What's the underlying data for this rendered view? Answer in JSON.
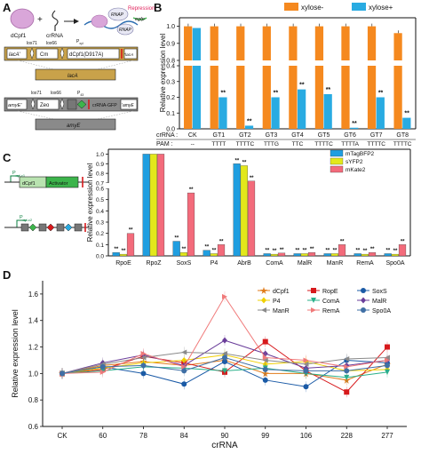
{
  "panels": {
    "a": "A",
    "b": "B",
    "c": "C",
    "d": "D"
  },
  "diagram_a": {
    "dcpf1": "dCpf1",
    "crrna": "crRNA",
    "rnap": "RNAP",
    "repression": "Repression",
    "egfp": "egfp",
    "lox71": "lox71",
    "lox66": "lox66",
    "lox71b": "lox71",
    "lox66b": "lox66",
    "lacA_left": "lacA'",
    "cm": "Cm",
    "pxyl": "P",
    "pxyl_sub": "xyl",
    "dcpf1_mut": "dCpf1(D917A)",
    "lacA_right": "'lacA",
    "lacA": "lacA",
    "amyE_left": "amyE'",
    "zeo": "Zeo",
    "p43": "P",
    "p43_sub": "43",
    "crrna_gfp": "crRNA-GFP",
    "amyE_right": "'amyE",
    "amyE": "amyE"
  },
  "diagram_c": {
    "p1": "P",
    "p1_sub": "xyl-c1",
    "dcpf1": "dCpf1",
    "activator": "Activator",
    "p2": "P",
    "p2_sub": "xyl-c2"
  },
  "chart_data": [
    {
      "type": "bar",
      "ylabel": "Relative expression level",
      "categories": [
        "CK",
        "GT1",
        "GT2",
        "GT3",
        "GT4",
        "GT5",
        "GT6",
        "GT7",
        "GT8"
      ],
      "row_labels": [
        "crRNA :",
        "PAM :"
      ],
      "pam": [
        "--",
        "TTTT",
        "TTTTC",
        "TTTG",
        "TTC",
        "TTTTC",
        "TTTTA",
        "TTTTC",
        "TTTTC"
      ],
      "series": [
        {
          "name": "xylose-",
          "color": "#f5891f",
          "values": [
            1.0,
            1.0,
            1.0,
            1.0,
            1.0,
            1.0,
            1.0,
            1.0,
            0.96
          ]
        },
        {
          "name": "xylose+",
          "color": "#29abe2",
          "values": [
            0.99,
            0.2,
            0.02,
            0.2,
            0.25,
            0.22,
            0.007,
            0.2,
            0.07
          ]
        }
      ],
      "significance": [
        null,
        "**",
        "**",
        "**",
        "**",
        "**",
        "**",
        "**",
        "**"
      ],
      "yticks": [
        "0.0",
        "0.1",
        "0.2",
        "0.3",
        "0.4",
        "0.8",
        "0.9",
        "1.0"
      ]
    },
    {
      "type": "bar",
      "ylabel": "Relative expression level",
      "categories": [
        "RpoE",
        "RpoZ",
        "SoxS",
        "P4",
        "AbrB",
        "ComA",
        "MalR",
        "ManR",
        "RemA",
        "Spo0A"
      ],
      "series": [
        {
          "name": "mTagBFP2",
          "color": "#1f9ee0",
          "values": [
            0.03,
            1.0,
            0.13,
            0.05,
            0.9,
            0.02,
            0.02,
            0.02,
            0.02,
            0.02
          ]
        },
        {
          "name": "sYFP2",
          "color": "#e3e81a",
          "values": [
            0.015,
            1.0,
            0.03,
            0.02,
            0.88,
            0.015,
            0.02,
            0.02,
            0.015,
            0.015
          ]
        },
        {
          "name": "mKate2",
          "color": "#f36b7b",
          "values": [
            0.2,
            1.0,
            0.56,
            0.1,
            0.72,
            0.025,
            0.03,
            0.1,
            0.03,
            0.1
          ]
        }
      ],
      "yticks": [
        "0.0",
        "0.1",
        "0.2",
        "0.3",
        "0.4",
        "0.5",
        "0.6",
        "0.7",
        "0.8",
        "0.9",
        "1.0"
      ]
    },
    {
      "type": "line",
      "xlabel": "crRNA",
      "ylabel": "Relative expression level",
      "categories": [
        "CK",
        "60",
        "78",
        "84",
        "90",
        "99",
        "106",
        "228",
        "277"
      ],
      "ylim": [
        0.6,
        1.7
      ],
      "yticks": [
        "0.6",
        "0.8",
        "1.0",
        "1.2",
        "1.4",
        "1.6"
      ],
      "series": [
        {
          "name": "dCpf1",
          "color": "#e07b1a",
          "marker": "star",
          "values": [
            1.0,
            1.06,
            1.09,
            1.06,
            1.1,
            1.0,
            1.0,
            0.95,
            1.07
          ]
        },
        {
          "name": "RopE",
          "color": "#d7191c",
          "marker": "square",
          "values": [
            1.0,
            1.03,
            1.13,
            1.08,
            1.01,
            1.24,
            1.02,
            0.86,
            1.2
          ]
        },
        {
          "name": "SoxS",
          "color": "#1a5aa6",
          "marker": "circle",
          "values": [
            1.0,
            1.05,
            1.0,
            0.92,
            1.09,
            0.95,
            0.9,
            1.1,
            1.08
          ]
        },
        {
          "name": "P4",
          "color": "#f0d000",
          "marker": "diamond",
          "values": [
            1.0,
            1.04,
            1.08,
            1.1,
            1.14,
            1.07,
            1.09,
            1.02,
            1.03
          ]
        },
        {
          "name": "ComA",
          "color": "#2ab08a",
          "marker": "tri-down",
          "values": [
            1.0,
            1.02,
            1.05,
            1.04,
            1.02,
            1.04,
            1.0,
            0.97,
            1.01
          ]
        },
        {
          "name": "MalR",
          "color": "#6a3d9a",
          "marker": "diamond",
          "values": [
            1.0,
            1.08,
            1.14,
            1.06,
            1.25,
            1.15,
            1.04,
            1.06,
            1.1
          ]
        },
        {
          "name": "ManR",
          "color": "#8a8a8a",
          "marker": "tri-left",
          "values": [
            1.0,
            1.07,
            1.12,
            1.16,
            1.15,
            1.1,
            1.07,
            1.11,
            1.12
          ]
        },
        {
          "name": "RemA",
          "color": "#f07a7a",
          "marker": "tri-right",
          "values": [
            1.0,
            1.01,
            1.15,
            1.05,
            1.58,
            1.12,
            1.1,
            1.05,
            1.1
          ]
        },
        {
          "name": "Spo0A",
          "color": "#3f6fa5",
          "marker": "hexagon",
          "values": [
            1.0,
            1.05,
            1.06,
            1.02,
            1.12,
            1.03,
            1.02,
            1.02,
            1.06
          ]
        }
      ]
    }
  ]
}
